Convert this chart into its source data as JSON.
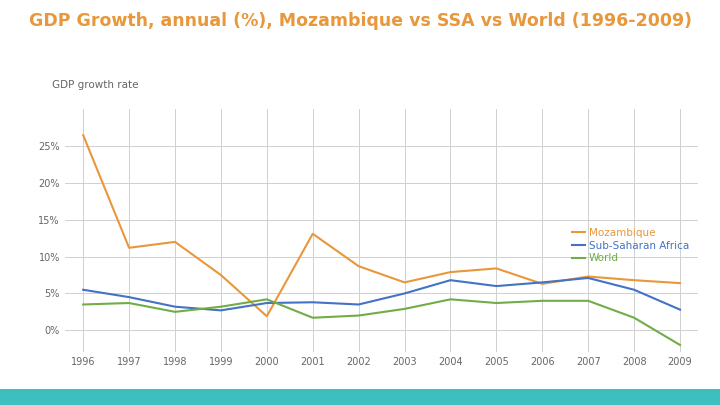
{
  "title": "GDP Growth, annual (%), Mozambique vs SSA vs World (1996-2009)",
  "title_color": "#E8973A",
  "ylabel": "GDP growth rate",
  "years": [
    1996,
    1997,
    1998,
    1999,
    2000,
    2001,
    2002,
    2003,
    2004,
    2005,
    2006,
    2007,
    2008,
    2009
  ],
  "mozambique": [
    26.5,
    11.2,
    12.0,
    7.5,
    1.9,
    13.1,
    8.7,
    6.5,
    7.9,
    8.4,
    6.3,
    7.3,
    6.8,
    6.4
  ],
  "ssa": [
    5.5,
    4.5,
    3.2,
    2.7,
    3.7,
    3.8,
    3.5,
    5.0,
    6.8,
    6.0,
    6.5,
    7.1,
    5.5,
    2.8
  ],
  "world": [
    3.5,
    3.7,
    2.5,
    3.2,
    4.2,
    1.7,
    2.0,
    2.9,
    4.2,
    3.7,
    4.0,
    4.0,
    1.7,
    -2.0
  ],
  "mozambique_color": "#E8973A",
  "ssa_color": "#4472C4",
  "world_color": "#70AD47",
  "bg_color": "#FFFFFF",
  "plot_bg_color": "#FFFFFF",
  "grid_color": "#D0D0D0",
  "yticks": [
    0,
    5,
    10,
    15,
    20,
    25
  ],
  "ylim": [
    -3,
    30
  ],
  "legend_labels": [
    "Mozambique",
    "Sub-Saharan Africa",
    "World"
  ],
  "bottom_bar_color": "#3DBFBF"
}
